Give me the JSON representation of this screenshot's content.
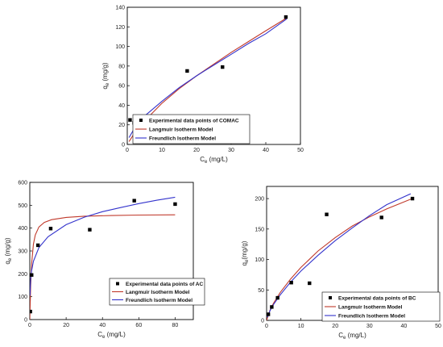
{
  "chart_data": [
    {
      "type": "scatter",
      "xlabel_main": "C",
      "xlabel_sub": "e",
      "xlabel_unit": " (mg/L)",
      "ylabel_main": "q",
      "ylabel_sub": "e",
      "ylabel_unit": " (mg/g)",
      "xlim": [
        0,
        50
      ],
      "ylim": [
        0,
        140
      ],
      "xticks": [
        "0",
        "10",
        "20",
        "30",
        "40",
        "50"
      ],
      "yticks": [
        "0",
        "20",
        "40",
        "60",
        "80",
        "100",
        "120",
        "140"
      ],
      "legend_position": "bottom-right",
      "series": [
        {
          "name": "Experimental data points of  COMAC",
          "kind": "points",
          "color": "#000000",
          "x": [
            0.8,
            2.0,
            4.5,
            9.3,
            17.3,
            27.5,
            45.8
          ],
          "y": [
            25,
            22,
            14,
            24,
            75,
            79,
            130
          ]
        },
        {
          "name": "Langmuir Isotherm Model",
          "kind": "line",
          "color": "#c0392b",
          "x": [
            0.5,
            2,
            5,
            10,
            15,
            20,
            25,
            30,
            35,
            40,
            46
          ],
          "y": [
            3,
            11,
            24,
            42,
            57,
            70,
            82,
            94,
            105,
            116,
            129
          ]
        },
        {
          "name": "Freundlich Isotherm Model",
          "kind": "line",
          "color": "#3333cc",
          "x": [
            0.5,
            2,
            5,
            10,
            15,
            20,
            25,
            30,
            35,
            40,
            46
          ],
          "y": [
            7,
            16,
            29,
            44,
            58,
            70,
            81,
            92,
            103,
            113,
            128
          ]
        }
      ]
    },
    {
      "type": "scatter",
      "xlabel_main": "C",
      "xlabel_sub": "e",
      "xlabel_unit": " (mg/L)",
      "ylabel_main": "q",
      "ylabel_sub": "e",
      "ylabel_unit": " (mg/g)",
      "xlim": [
        0,
        90
      ],
      "ylim": [
        0,
        600
      ],
      "xticks": [
        "0",
        "20",
        "40",
        "60",
        "80"
      ],
      "yticks": [
        "0",
        "100",
        "200",
        "300",
        "400",
        "500",
        "600"
      ],
      "legend_position": "bottom-right",
      "series": [
        {
          "name": "Experimental data points of AC",
          "kind": "points",
          "color": "#000000",
          "x": [
            0.3,
            1.0,
            4.5,
            11.5,
            33,
            57.5,
            80
          ],
          "y": [
            35,
            195,
            325,
            398,
            393,
            520,
            505
          ]
        },
        {
          "name": "Langmuir Isotherm Model",
          "kind": "line",
          "color": "#c0392b",
          "x": [
            0,
            0.5,
            1,
            2,
            3,
            5,
            8,
            12,
            20,
            30,
            45,
            60,
            80
          ],
          "y": [
            0,
            150,
            245,
            330,
            370,
            405,
            425,
            437,
            447,
            452,
            455,
            457,
            458
          ]
        },
        {
          "name": "Freundlich Isotherm Model",
          "kind": "line",
          "color": "#3333cc",
          "x": [
            0.1,
            0.5,
            1,
            2,
            5,
            10,
            20,
            30,
            40,
            50,
            60,
            70,
            80
          ],
          "y": [
            105,
            180,
            215,
            255,
            315,
            362,
            415,
            448,
            472,
            490,
            507,
            522,
            535
          ]
        }
      ]
    },
    {
      "type": "scatter",
      "xlabel_main": "C",
      "xlabel_sub": "e",
      "xlabel_unit": " (mg/L)",
      "ylabel_main": "q",
      "ylabel_sub": "e",
      "ylabel_unit": "(mg/g)",
      "xlim": [
        0,
        50
      ],
      "ylim": [
        0,
        220
      ],
      "xticks": [
        "0",
        "10",
        "20",
        "30",
        "40",
        "50"
      ],
      "yticks": [
        "0",
        "50",
        "100",
        "150",
        "200"
      ],
      "legend_position": "bottom-right",
      "series": [
        {
          "name": "Experimental data points of BC",
          "kind": "points",
          "color": "#000000",
          "x": [
            0.5,
            1.5,
            3.2,
            7.2,
            12.5,
            17.5,
            33.5,
            42.5
          ],
          "y": [
            10,
            22,
            37,
            62,
            61,
            174,
            169,
            200
          ]
        },
        {
          "name": "Langmuir Isotherm Model",
          "kind": "line",
          "color": "#c0392b",
          "x": [
            0,
            1,
            2,
            4,
            7,
            10,
            15,
            20,
            25,
            30,
            35,
            42
          ],
          "y": [
            0,
            17,
            28,
            46,
            68,
            87,
            114,
            136,
            155,
            170,
            183,
            199
          ]
        },
        {
          "name": "Freundlich Isotherm Model",
          "kind": "line",
          "color": "#3333cc",
          "x": [
            0.2,
            1,
            2,
            4,
            7,
            10,
            15,
            20,
            25,
            30,
            35,
            42
          ],
          "y": [
            5,
            16,
            26,
            42,
            63,
            81,
            107,
            131,
            152,
            172,
            190,
            208
          ]
        }
      ]
    }
  ]
}
